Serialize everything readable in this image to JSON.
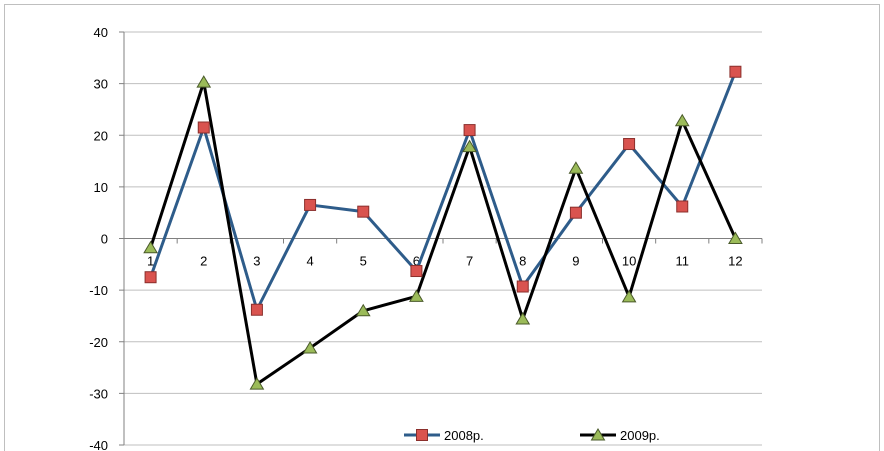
{
  "chart_data": {
    "type": "line",
    "title": "",
    "xlabel": "",
    "ylabel": "",
    "categories": [
      "1",
      "2",
      "3",
      "4",
      "5",
      "6",
      "7",
      "8",
      "9",
      "10",
      "11",
      "12"
    ],
    "ylim": [
      -40,
      40
    ],
    "yticks": [
      40,
      30,
      20,
      10,
      0,
      -10,
      -20,
      -30,
      -40
    ],
    "grid": true,
    "legend": "bottom",
    "series": [
      {
        "name": "2008р.",
        "color": "#2e5c8a",
        "marker": "square",
        "marker_color": "#d9534f",
        "values": [
          -7.5,
          21.5,
          -13.8,
          6.5,
          5.2,
          -6.3,
          21,
          -9.3,
          5,
          18.3,
          6.2,
          32.3
        ]
      },
      {
        "name": "2009р.",
        "color": "#000000",
        "marker": "triangle",
        "marker_color": "#9bbb59",
        "values": [
          -1.8,
          30.3,
          -28.2,
          -21.2,
          -14,
          -11.2,
          17.8,
          -15.6,
          13.6,
          -11.3,
          22.8,
          0
        ]
      }
    ]
  }
}
